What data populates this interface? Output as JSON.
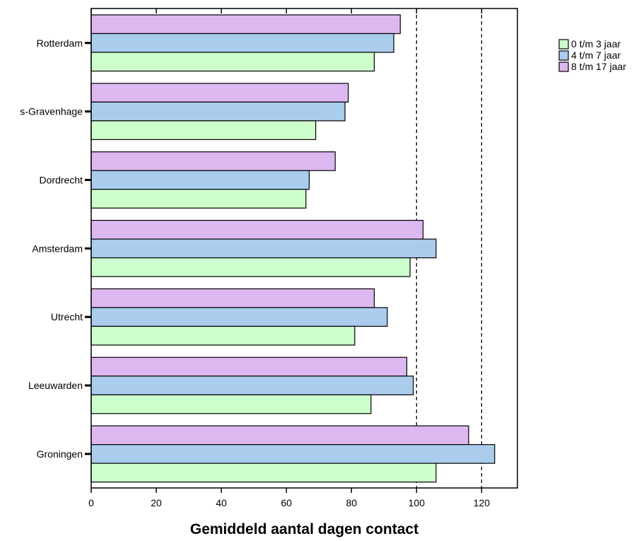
{
  "chart_data": {
    "type": "bar",
    "orientation": "horizontal",
    "xlabel": "Gemiddeld aantal dagen contact",
    "ylabel": "",
    "title": "",
    "xlim": [
      0,
      131
    ],
    "xticks": [
      0,
      20,
      40,
      60,
      80,
      100,
      120
    ],
    "reference_lines": [
      100,
      120
    ],
    "grid": "dashed vertical lines at 100 and 120",
    "legend_position": "top-right",
    "categories": [
      "Rotterdam",
      "s-Gravenhage",
      "Dordrecht",
      "Amsterdam",
      "Utrecht",
      "Leeuwarden",
      "Groningen"
    ],
    "series": [
      {
        "name": "0 t/m 3 jaar",
        "color": "#ccffcc",
        "values": [
          87,
          69,
          66,
          98,
          81,
          86,
          106
        ]
      },
      {
        "name": "4 t/m 7 jaar",
        "color": "#aacdee",
        "values": [
          93,
          78,
          67,
          106,
          91,
          99,
          124
        ]
      },
      {
        "name": "8 t/m 17 jaar",
        "color": "#ddb8f0",
        "values": [
          95,
          79,
          75,
          102,
          87,
          97,
          116
        ]
      }
    ]
  }
}
